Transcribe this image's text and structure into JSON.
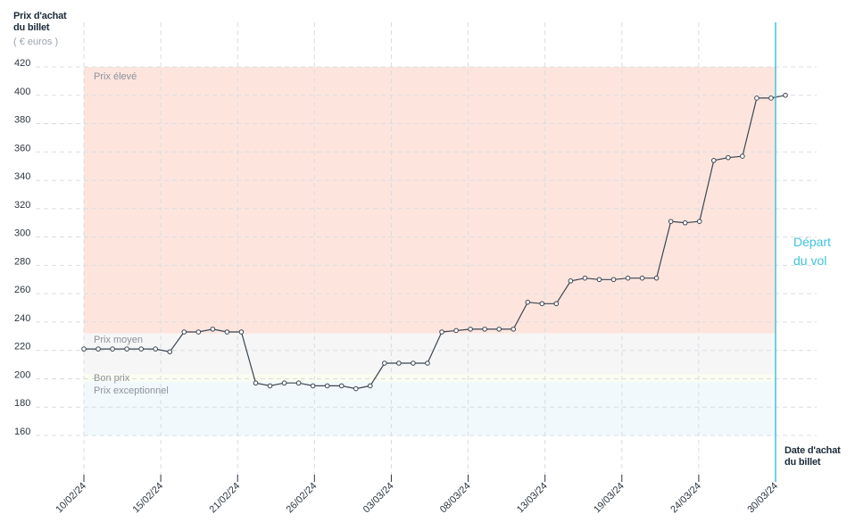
{
  "axes": {
    "y_title_line1": "Prix d'achat",
    "y_title_line2": "du billet",
    "y_unit": "( € euros )",
    "x_title_line1": "Date d'achat",
    "x_title_line2": "du billet"
  },
  "departure": {
    "line1": "Départ",
    "line2": "du vol"
  },
  "bands": [
    {
      "label": "Prix élevé",
      "from": 232,
      "to": 420,
      "color": "#fde5de"
    },
    {
      "label": "Prix moyen",
      "from": 203,
      "to": 232,
      "color": "#f6f6f6"
    },
    {
      "label": "Bon prix",
      "from": 198,
      "to": 203,
      "color": "#fbfdf0"
    },
    {
      "label": "Prix exceptionnel",
      "from": 160,
      "to": 198,
      "color": "#f1f9fd"
    }
  ],
  "chart_data": {
    "type": "line",
    "xlabel": "Date d'achat du billet",
    "ylabel": "Prix d'achat du billet",
    "ylim": [
      160,
      420
    ],
    "yticks": [
      160,
      180,
      200,
      220,
      240,
      260,
      280,
      300,
      320,
      340,
      360,
      380,
      400,
      420
    ],
    "xticks": [
      "10/02/24",
      "15/02/24",
      "21/02/24",
      "26/02/24",
      "03/03/24",
      "08/03/24",
      "13/03/24",
      "19/03/24",
      "24/03/24",
      "30/03/24"
    ],
    "grid": true,
    "departure_date": "30/03/24",
    "series": [
      {
        "values": [
          221,
          221,
          221,
          221,
          221,
          221,
          219,
          233,
          233,
          235,
          233,
          233,
          197,
          195,
          197,
          197,
          195,
          195,
          195,
          193,
          195,
          211,
          211,
          211,
          211,
          233,
          234,
          235,
          235,
          235,
          235,
          254,
          253,
          253,
          269,
          271,
          270,
          270,
          271,
          271,
          271,
          311,
          310,
          311,
          354,
          356,
          357,
          398,
          398,
          400
        ]
      }
    ]
  }
}
